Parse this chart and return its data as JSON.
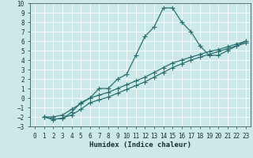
{
  "xlabel": "Humidex (Indice chaleur)",
  "background_color": "#cce8e8",
  "grid_color": "#b0d0d0",
  "line_color": "#2a7070",
  "xlim": [
    -0.5,
    23.5
  ],
  "ylim": [
    -3,
    10
  ],
  "xticks": [
    0,
    1,
    2,
    3,
    4,
    5,
    6,
    7,
    8,
    9,
    10,
    11,
    12,
    13,
    14,
    15,
    16,
    17,
    18,
    19,
    20,
    21,
    22,
    23
  ],
  "yticks": [
    -3,
    -2,
    -1,
    0,
    1,
    2,
    3,
    4,
    5,
    6,
    7,
    8,
    9,
    10
  ],
  "line1_x": [
    1,
    2,
    3,
    4,
    5,
    6,
    7,
    8,
    9,
    10,
    11,
    12,
    13,
    14,
    15,
    16,
    17,
    18,
    19,
    20,
    21,
    22,
    23
  ],
  "line1_y": [
    -2,
    -2.2,
    -2.2,
    -1.5,
    -0.5,
    0.0,
    1.0,
    1.0,
    2.0,
    2.5,
    4.5,
    6.5,
    7.5,
    9.5,
    9.5,
    8.0,
    7.0,
    5.5,
    4.5,
    4.5,
    5.0,
    5.5,
    6.0
  ],
  "line2_x": [
    1,
    2,
    3,
    4,
    5,
    6,
    7,
    8,
    9,
    10,
    11,
    12,
    13,
    14,
    15,
    16,
    17,
    18,
    19,
    20,
    21,
    22,
    23
  ],
  "line2_y": [
    -2,
    -2,
    -1.8,
    -1.2,
    -0.6,
    0.0,
    0.3,
    0.6,
    1.0,
    1.4,
    1.8,
    2.2,
    2.7,
    3.2,
    3.7,
    4.0,
    4.3,
    4.6,
    4.9,
    5.1,
    5.4,
    5.7,
    6.0
  ],
  "line3_x": [
    1,
    2,
    3,
    4,
    5,
    6,
    7,
    8,
    9,
    10,
    11,
    12,
    13,
    14,
    15,
    16,
    17,
    18,
    19,
    20,
    21,
    22,
    23
  ],
  "line3_y": [
    -2,
    -2.3,
    -2.1,
    -1.8,
    -1.2,
    -0.5,
    -0.2,
    0.1,
    0.5,
    0.9,
    1.3,
    1.7,
    2.2,
    2.7,
    3.2,
    3.6,
    4.0,
    4.3,
    4.6,
    4.9,
    5.2,
    5.5,
    5.8
  ],
  "xlabel_fontsize": 6.5,
  "tick_fontsize": 5.5
}
